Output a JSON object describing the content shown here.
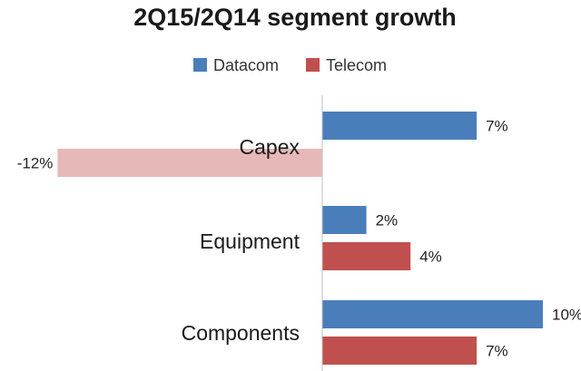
{
  "chart_data": {
    "type": "bar",
    "orientation": "horizontal",
    "title": "2Q15/2Q14 segment growth",
    "categories": [
      "Capex",
      "Equipment",
      "Components"
    ],
    "series": [
      {
        "name": "Datacom",
        "values": [
          7,
          2,
          10
        ],
        "labels": [
          "7%",
          "2%",
          "10%"
        ],
        "color": "#4a7ebb"
      },
      {
        "name": "Telecom",
        "values": [
          -12,
          4,
          7
        ],
        "labels": [
          "-12%",
          "4%",
          "7%"
        ],
        "color": "#c0504d"
      }
    ],
    "negative_bar_color": "#e6b9b8",
    "xlim": [
      -12,
      10
    ],
    "legend_position": "top",
    "grid": false
  }
}
